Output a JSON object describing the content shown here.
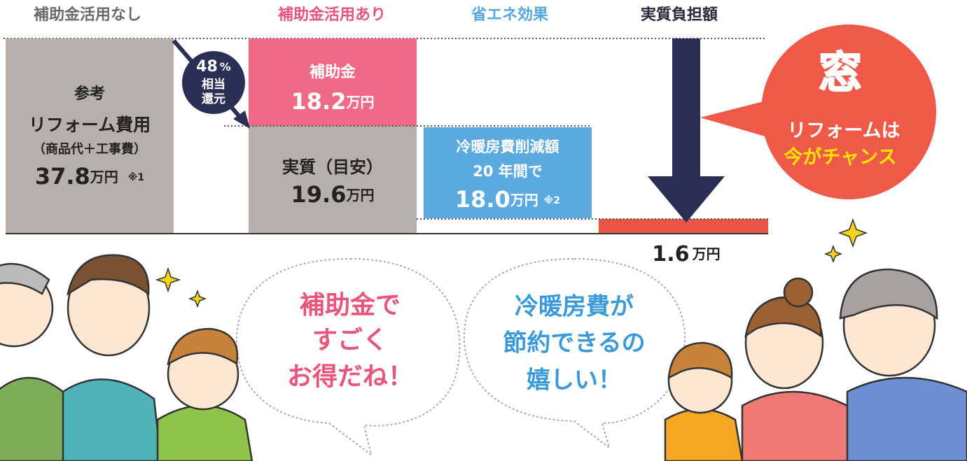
{
  "headers": [
    "補助金活用なし",
    "補助金活用あり",
    "省エネ効果",
    "実質負担額"
  ],
  "reference": {
    "lines": [
      "参考",
      "リフォーム費用",
      "（商品代＋工事費）"
    ],
    "amount": "37.8",
    "unit": "万円",
    "note": "※1"
  },
  "badge": {
    "percent": "48",
    "percent_sign": "%",
    "lines": [
      "相当",
      "還元"
    ]
  },
  "subsidy": {
    "label": "補助金",
    "amount": "18.2",
    "unit": "万円"
  },
  "net": {
    "label": "実質（目安）",
    "amount": "19.6",
    "unit": "万円"
  },
  "savings": {
    "lines": [
      "冷暖房費削減額",
      "20 年間で"
    ],
    "amount": "18.0",
    "unit": "万円",
    "note": "※2"
  },
  "burden": {
    "amount": "1.6",
    "unit": "万円"
  },
  "callout": {
    "icon": "窓",
    "lines": [
      "リフォームは",
      "今がチャンス"
    ]
  },
  "bubble_left": [
    "補助金で",
    "すごく",
    "お得だね！"
  ],
  "bubble_right": [
    "冷暖房費が",
    "節約できるの",
    "嬉しい！"
  ]
}
